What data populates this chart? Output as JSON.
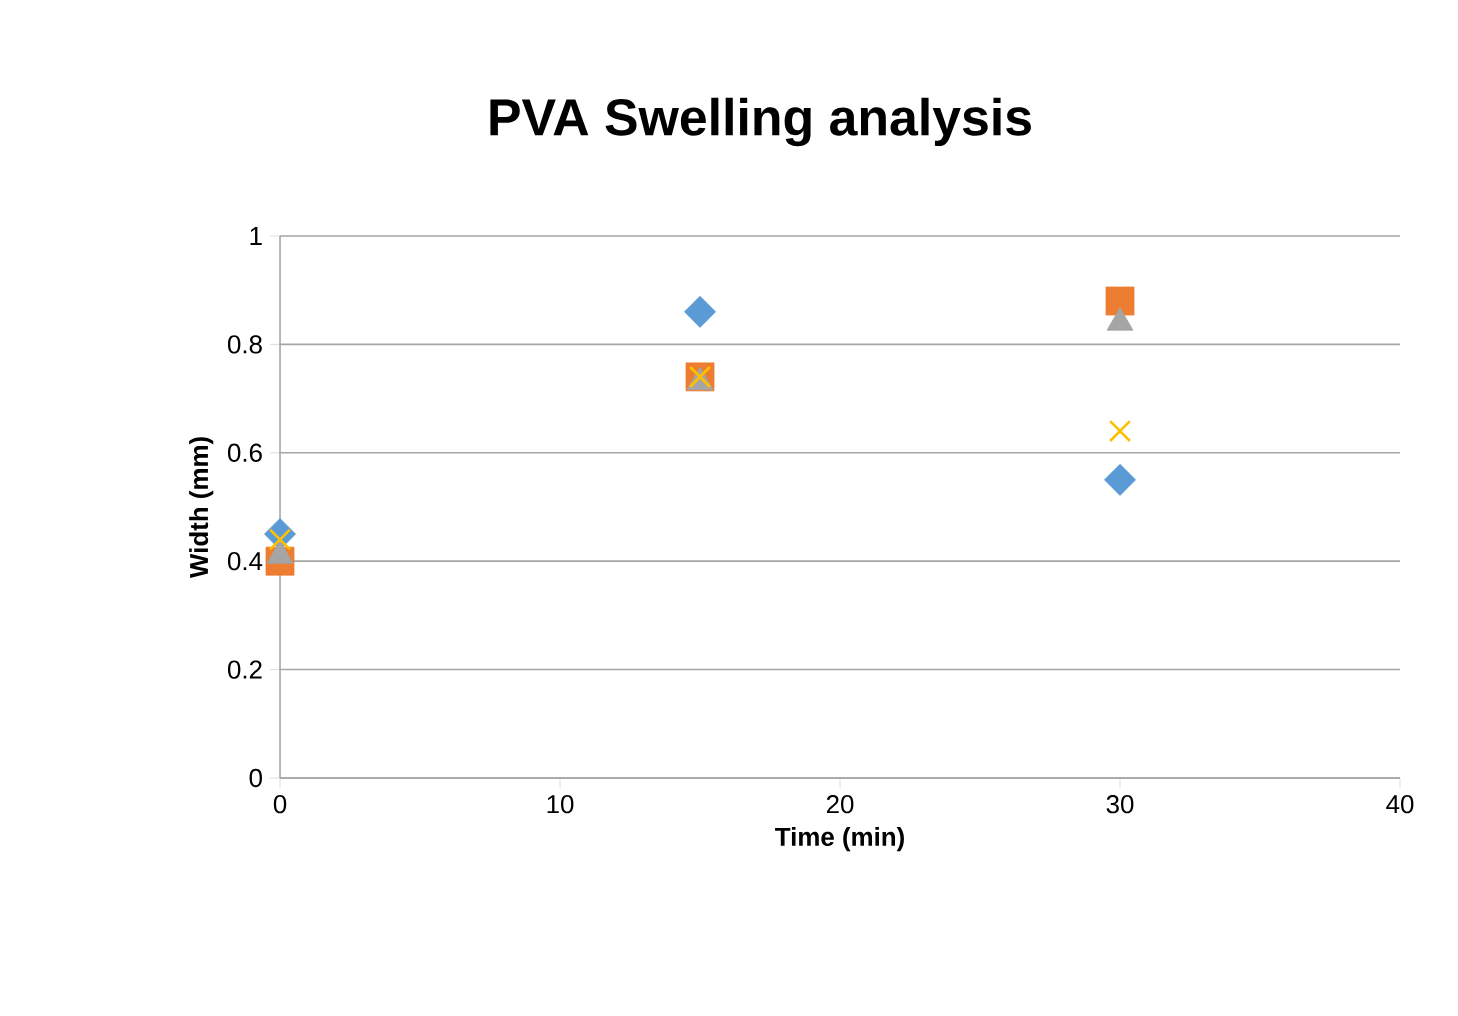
{
  "chart_data": {
    "type": "scatter",
    "title": "PVA Swelling analysis",
    "xlabel": "Time (min)",
    "ylabel": "Width (mm)",
    "x": [
      0,
      15,
      30
    ],
    "series": [
      {
        "color": "#5b9bd5",
        "marker": "diamond",
        "values": [
          0.45,
          0.86,
          0.55
        ]
      },
      {
        "color": "#ed7d31",
        "marker": "square",
        "values": [
          0.4,
          0.74,
          0.88
        ]
      },
      {
        "color": "#a5a5a5",
        "marker": "triangle",
        "values": [
          0.41,
          0.73,
          0.84
        ]
      },
      {
        "color": "#ffc000",
        "marker": "cross",
        "values": [
          0.44,
          0.74,
          0.64
        ]
      }
    ],
    "xlim": [
      0,
      40
    ],
    "xticks": [
      0,
      10,
      20,
      30,
      40
    ],
    "ylim": [
      0,
      1
    ],
    "yticks": [
      0,
      0.2,
      0.4,
      0.6,
      0.8,
      1
    ],
    "grid": "y"
  }
}
